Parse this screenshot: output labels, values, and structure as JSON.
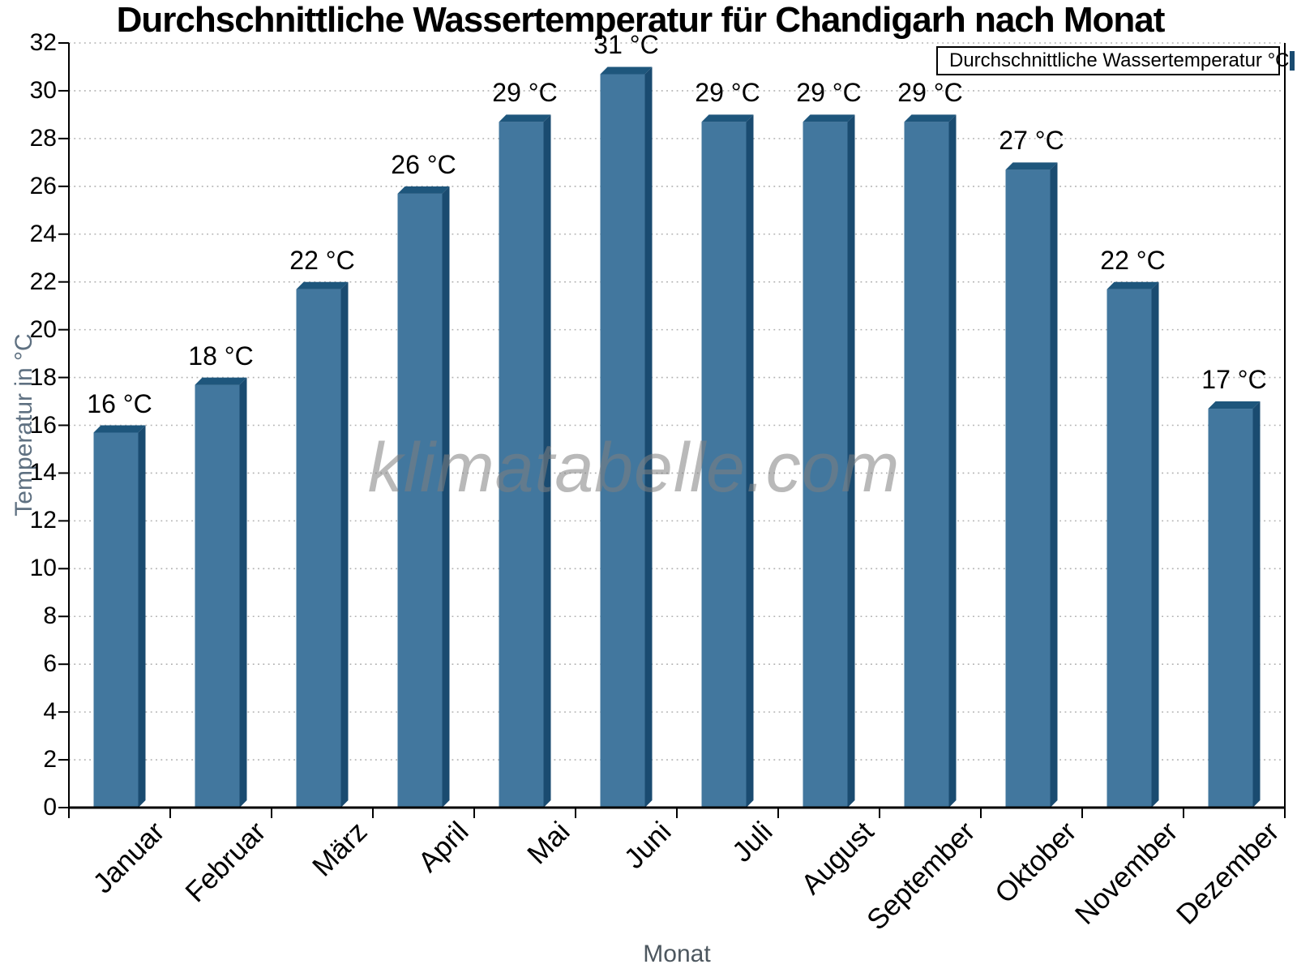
{
  "title": "Durchschnittliche Wassertemperatur für Chandigarh nach Monat",
  "watermark": "klimatabelle.com",
  "legend": {
    "label": "Durchschnittliche Wassertemperatur °C"
  },
  "axes": {
    "y_label": "Temperatur in °C",
    "x_label": "Monat"
  },
  "chart_data": {
    "type": "bar",
    "title": "Durchschnittliche Wassertemperatur für Chandigarh nach Monat",
    "categories": [
      "Januar",
      "Februar",
      "März",
      "April",
      "Mai",
      "Juni",
      "Juli",
      "August",
      "September",
      "Oktober",
      "November",
      "Dezember"
    ],
    "values": [
      16,
      18,
      22,
      26,
      29,
      31,
      29,
      29,
      29,
      27,
      22,
      17
    ],
    "bar_labels": [
      "16 °C",
      "18 °C",
      "22 °C",
      "26 °C",
      "29 °C",
      "31 °C",
      "29 °C",
      "29 °C",
      "29 °C",
      "27 °C",
      "22 °C",
      "17 °C"
    ],
    "series_name": "Durchschnittliche Wassertemperatur °C",
    "xlabel": "Monat",
    "ylabel": "Temperatur in °C",
    "ylim": [
      0,
      32
    ],
    "yticks": [
      0,
      2,
      4,
      6,
      8,
      10,
      12,
      14,
      16,
      18,
      20,
      22,
      24,
      26,
      28,
      30,
      32
    ],
    "grid": "horizontal-dotted",
    "legend_position": "top-right"
  },
  "colors": {
    "bar_face": "#42779E",
    "bar_top": "#1E567C",
    "bar_side": "#1A4B70",
    "grid": "#b0b0b0",
    "axis": "#000000",
    "y_axis_title": "#5e7081",
    "x_axis_title": "#4d575f",
    "watermark": "rgba(128,128,128,0.55)"
  }
}
